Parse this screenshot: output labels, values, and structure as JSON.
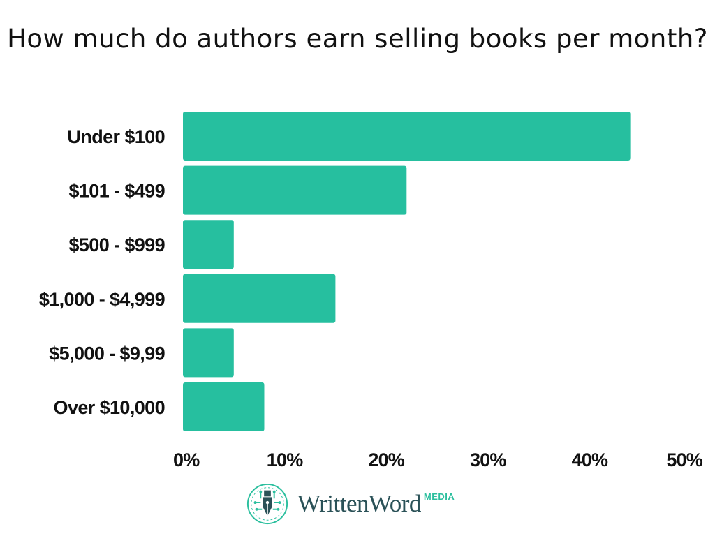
{
  "chart_data": {
    "type": "bar",
    "orientation": "horizontal",
    "title": "How much do authors earn selling books per month?",
    "categories": [
      "Under $100",
      "$101 - $499",
      "$500 - $999",
      "$1,000 - $4,999",
      "$5,000 - $9,99",
      "Over $10,000"
    ],
    "values": [
      44,
      22,
      5,
      15,
      5,
      8
    ],
    "unit": "%",
    "xlim": [
      0,
      50
    ],
    "xticks": [
      "0%",
      "10%",
      "20%",
      "30%",
      "40%",
      "50%"
    ],
    "xtick_values": [
      0,
      10,
      20,
      30,
      40,
      50
    ],
    "grid": false,
    "bar_color": "#26bf9f"
  },
  "brand": {
    "name": "WrittenWord",
    "sub": "MEDIA",
    "icon": "fountain-pen-circuit-icon",
    "text_color": "#2a5157",
    "accent_color": "#2bbf9e"
  }
}
